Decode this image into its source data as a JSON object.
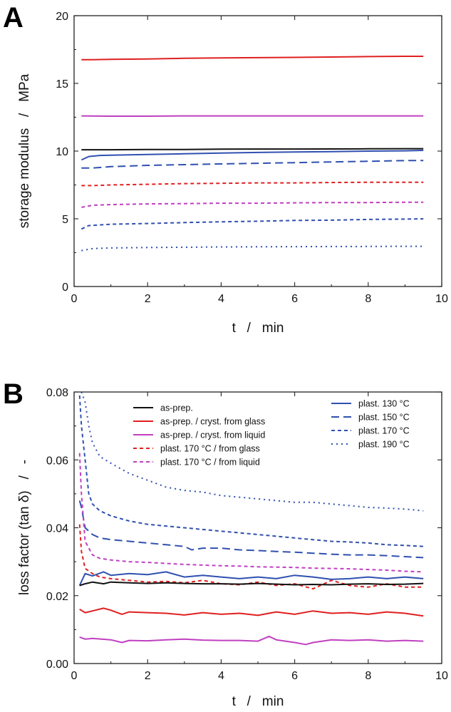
{
  "chart_data": [
    {
      "panel": "A",
      "type": "line",
      "xlabel": "t   /   min",
      "ylabel": "storage modulus   /   MPa",
      "xlim": [
        0,
        10
      ],
      "ylim": [
        0,
        20
      ],
      "xticks": [
        "0",
        "2",
        "4",
        "6",
        "8",
        "10"
      ],
      "yticks": [
        "0",
        "5",
        "10",
        "15",
        "20"
      ],
      "grid": false,
      "legend": "none",
      "series": [
        {
          "color": "#e02020",
          "dash": "solid",
          "x": [
            0.2,
            0.5,
            1,
            2,
            3,
            4,
            5,
            6,
            7,
            8,
            9,
            9.5
          ],
          "y": [
            16.75,
            16.75,
            16.78,
            16.8,
            16.85,
            16.88,
            16.9,
            16.92,
            16.95,
            16.98,
            17.0,
            17.0
          ]
        },
        {
          "color": "#c040c0",
          "dash": "solid",
          "x": [
            0.2,
            1,
            2,
            3,
            4,
            5,
            6,
            7,
            8,
            9,
            9.5
          ],
          "y": [
            12.6,
            12.58,
            12.58,
            12.6,
            12.6,
            12.6,
            12.6,
            12.6,
            12.6,
            12.6,
            12.6
          ]
        },
        {
          "color": "#111111",
          "dash": "solid",
          "x": [
            0.2,
            1,
            2,
            3,
            4,
            5,
            6,
            7,
            8,
            9,
            9.5
          ],
          "y": [
            10.1,
            10.1,
            10.12,
            10.12,
            10.14,
            10.15,
            10.15,
            10.16,
            10.17,
            10.18,
            10.18
          ]
        },
        {
          "color": "#3050b0",
          "dash": "solid",
          "x": [
            0.2,
            0.4,
            0.7,
            1,
            2,
            3,
            4,
            5,
            6,
            7,
            8,
            9,
            9.5
          ],
          "y": [
            9.35,
            9.6,
            9.68,
            9.7,
            9.75,
            9.8,
            9.85,
            9.9,
            9.93,
            9.96,
            10.0,
            10.02,
            10.05
          ]
        },
        {
          "color": "#3050b0",
          "dash": "long",
          "x": [
            0.2,
            0.5,
            1,
            2,
            3,
            4,
            5,
            6,
            7,
            8,
            9,
            9.5
          ],
          "y": [
            8.75,
            8.75,
            8.85,
            8.95,
            9.0,
            9.05,
            9.1,
            9.15,
            9.2,
            9.25,
            9.3,
            9.3
          ]
        },
        {
          "color": "#e02020",
          "dash": "short",
          "x": [
            0.2,
            0.5,
            1,
            2,
            3,
            4,
            5,
            6,
            7,
            8,
            9,
            9.5
          ],
          "y": [
            7.45,
            7.45,
            7.5,
            7.55,
            7.6,
            7.62,
            7.65,
            7.65,
            7.68,
            7.7,
            7.7,
            7.7
          ]
        },
        {
          "color": "#c040c0",
          "dash": "short",
          "x": [
            0.2,
            0.5,
            1,
            2,
            3,
            4,
            5,
            6,
            7,
            8,
            9,
            9.5
          ],
          "y": [
            5.85,
            6.0,
            6.05,
            6.1,
            6.12,
            6.15,
            6.15,
            6.18,
            6.2,
            6.2,
            6.22,
            6.22
          ]
        },
        {
          "color": "#3050b0",
          "dash": "short",
          "x": [
            0.2,
            0.4,
            0.7,
            1,
            2,
            3,
            4,
            5,
            6,
            7,
            8,
            9,
            9.5
          ],
          "y": [
            4.25,
            4.5,
            4.55,
            4.6,
            4.65,
            4.72,
            4.78,
            4.82,
            4.88,
            4.9,
            4.95,
            4.98,
            5.0
          ]
        },
        {
          "color": "#3050b0",
          "dash": "dot",
          "x": [
            0.2,
            0.5,
            1,
            2,
            3,
            4,
            5,
            6,
            7,
            8,
            9,
            9.5
          ],
          "y": [
            2.65,
            2.8,
            2.85,
            2.88,
            2.9,
            2.92,
            2.93,
            2.94,
            2.95,
            2.96,
            2.97,
            2.97
          ]
        }
      ]
    },
    {
      "panel": "B",
      "type": "line",
      "xlabel": "t   /   min",
      "ylabel": "loss factor (tan δ)   /   -",
      "xlim": [
        0,
        10
      ],
      "ylim": [
        0,
        0.08
      ],
      "xticks": [
        "0",
        "2",
        "4",
        "6",
        "8",
        "10"
      ],
      "yticks": [
        "0.00",
        "0.02",
        "0.04",
        "0.06",
        "0.08"
      ],
      "grid": false,
      "legend": "top",
      "legend_left": [
        {
          "label": "as-prep.",
          "color": "#111111",
          "dash": "solid"
        },
        {
          "label": "as-prep. / cryst. from glass",
          "color": "#e02020",
          "dash": "solid"
        },
        {
          "label": "as-prep. / cryst. from liquid",
          "color": "#c040c0",
          "dash": "solid"
        },
        {
          "label": "plast. 170 °C / from glass",
          "color": "#e02020",
          "dash": "short"
        },
        {
          "label": "plast. 170 °C / from liquid",
          "color": "#c040c0",
          "dash": "short"
        }
      ],
      "legend_right": [
        {
          "label": "plast. 130 °C",
          "color": "#3050b0",
          "dash": "solid"
        },
        {
          "label": "plast. 150 °C",
          "color": "#3050b0",
          "dash": "long"
        },
        {
          "label": "plast. 170 °C",
          "color": "#3050b0",
          "dash": "short"
        },
        {
          "label": "plast. 190 °C",
          "color": "#3050b0",
          "dash": "dot"
        }
      ],
      "series": [
        {
          "color": "#3050b0",
          "dash": "dot",
          "x": [
            0.2,
            0.3,
            0.4,
            0.5,
            0.7,
            1.0,
            1.5,
            2.0,
            2.5,
            3.0,
            3.5,
            4.0,
            4.5,
            5.0,
            5.5,
            6.0,
            6.5,
            7.0,
            7.5,
            8.0,
            8.5,
            9.0,
            9.5
          ],
          "y": [
            0.08,
            0.077,
            0.07,
            0.065,
            0.061,
            0.059,
            0.056,
            0.054,
            0.052,
            0.051,
            0.0505,
            0.0495,
            0.049,
            0.0485,
            0.048,
            0.0475,
            0.0475,
            0.047,
            0.0465,
            0.046,
            0.0458,
            0.0455,
            0.045
          ]
        },
        {
          "color": "#3050b0",
          "dash": "short",
          "x": [
            0.15,
            0.2,
            0.3,
            0.4,
            0.5,
            0.7,
            1.0,
            1.5,
            2.0,
            2.5,
            3.0,
            3.5,
            4.0,
            4.5,
            5.0,
            5.5,
            6.0,
            6.5,
            7.0,
            7.5,
            8.0,
            8.5,
            9.0,
            9.5
          ],
          "y": [
            0.079,
            0.07,
            0.06,
            0.05,
            0.047,
            0.045,
            0.0435,
            0.042,
            0.041,
            0.0405,
            0.04,
            0.0395,
            0.039,
            0.0385,
            0.038,
            0.0375,
            0.037,
            0.0365,
            0.036,
            0.0358,
            0.0355,
            0.035,
            0.0348,
            0.0345
          ]
        },
        {
          "color": "#3050b0",
          "dash": "long",
          "x": [
            0.15,
            0.2,
            0.3,
            0.5,
            0.7,
            1.0,
            1.5,
            2.0,
            2.5,
            3.0,
            3.2,
            3.5,
            4.0,
            4.5,
            5.0,
            5.5,
            6.0,
            6.5,
            7.0,
            7.5,
            8.0,
            8.5,
            9.0,
            9.5
          ],
          "y": [
            0.048,
            0.046,
            0.04,
            0.038,
            0.037,
            0.0365,
            0.036,
            0.0355,
            0.035,
            0.0345,
            0.0335,
            0.034,
            0.034,
            0.0335,
            0.0333,
            0.033,
            0.0328,
            0.0325,
            0.0322,
            0.032,
            0.032,
            0.0318,
            0.0315,
            0.0312
          ]
        },
        {
          "color": "#c040c0",
          "dash": "short",
          "x": [
            0.15,
            0.2,
            0.3,
            0.5,
            0.7,
            1.0,
            1.5,
            2.0,
            2.5,
            3.0,
            3.5,
            4.0,
            4.5,
            5.0,
            5.5,
            6.0,
            6.5,
            7.0,
            7.5,
            8.0,
            8.5,
            9.0,
            9.5
          ],
          "y": [
            0.062,
            0.05,
            0.036,
            0.032,
            0.031,
            0.0305,
            0.03,
            0.0298,
            0.0295,
            0.0292,
            0.029,
            0.0288,
            0.0287,
            0.0285,
            0.0284,
            0.0283,
            0.0281,
            0.028,
            0.0279,
            0.0277,
            0.0275,
            0.0272,
            0.027
          ]
        },
        {
          "color": "#e02020",
          "dash": "short",
          "x": [
            0.15,
            0.2,
            0.3,
            0.5,
            0.7,
            1.0,
            1.5,
            2.0,
            2.5,
            3.0,
            3.5,
            4.0,
            4.5,
            5.0,
            5.5,
            6.0,
            6.5,
            7.0,
            7.5,
            8.0,
            8.5,
            9.0,
            9.5
          ],
          "y": [
            0.041,
            0.033,
            0.028,
            0.0265,
            0.0255,
            0.025,
            0.0245,
            0.024,
            0.0242,
            0.0238,
            0.0245,
            0.0235,
            0.0232,
            0.024,
            0.023,
            0.0235,
            0.022,
            0.0245,
            0.023,
            0.0225,
            0.0235,
            0.0225,
            0.0225
          ]
        },
        {
          "color": "#3050b0",
          "dash": "solid",
          "x": [
            0.15,
            0.3,
            0.5,
            0.8,
            1.0,
            1.5,
            2.0,
            2.5,
            3.0,
            3.5,
            4.0,
            4.5,
            5.0,
            5.5,
            6.0,
            6.5,
            7.0,
            7.5,
            8.0,
            8.5,
            9.0,
            9.5
          ],
          "y": [
            0.023,
            0.0265,
            0.0258,
            0.027,
            0.026,
            0.0265,
            0.0262,
            0.027,
            0.0255,
            0.026,
            0.0255,
            0.025,
            0.0255,
            0.025,
            0.026,
            0.0255,
            0.0248,
            0.025,
            0.0255,
            0.025,
            0.0255,
            0.025
          ]
        },
        {
          "color": "#111111",
          "dash": "solid",
          "x": [
            0.15,
            0.3,
            0.5,
            0.8,
            1.0,
            1.5,
            2.0,
            2.5,
            3.0,
            3.5,
            4.0,
            4.5,
            5.0,
            5.5,
            6.0,
            6.5,
            7.0,
            7.5,
            8.0,
            8.5,
            9.0,
            9.5
          ],
          "y": [
            0.023,
            0.0235,
            0.024,
            0.0235,
            0.024,
            0.0238,
            0.0236,
            0.0238,
            0.0236,
            0.0235,
            0.0235,
            0.0234,
            0.0236,
            0.0234,
            0.0232,
            0.0233,
            0.0232,
            0.0234,
            0.0235,
            0.0233,
            0.0234,
            0.0236
          ]
        },
        {
          "color": "#e02020",
          "dash": "solid",
          "x": [
            0.15,
            0.3,
            0.5,
            0.8,
            1.0,
            1.3,
            1.5,
            2.0,
            2.5,
            3.0,
            3.5,
            4.0,
            4.5,
            5.0,
            5.5,
            6.0,
            6.5,
            7.0,
            7.5,
            8.0,
            8.5,
            9.0,
            9.5
          ],
          "y": [
            0.016,
            0.015,
            0.0155,
            0.0163,
            0.0157,
            0.0145,
            0.0152,
            0.015,
            0.0148,
            0.0143,
            0.015,
            0.0145,
            0.0148,
            0.0142,
            0.0152,
            0.0145,
            0.0155,
            0.0148,
            0.015,
            0.0145,
            0.0152,
            0.0148,
            0.014
          ]
        },
        {
          "color": "#c040c0",
          "dash": "solid",
          "x": [
            0.15,
            0.3,
            0.5,
            1.0,
            1.3,
            1.5,
            2.0,
            2.5,
            3.0,
            3.5,
            4.0,
            4.5,
            5.0,
            5.3,
            5.5,
            6.0,
            6.3,
            6.5,
            7.0,
            7.5,
            8.0,
            8.5,
            9.0,
            9.5
          ],
          "y": [
            0.0078,
            0.0072,
            0.0074,
            0.007,
            0.0062,
            0.0068,
            0.0067,
            0.007,
            0.0072,
            0.0069,
            0.0068,
            0.0068,
            0.0066,
            0.008,
            0.007,
            0.0062,
            0.0056,
            0.0062,
            0.007,
            0.0068,
            0.007,
            0.0066,
            0.0068,
            0.0066
          ]
        }
      ]
    }
  ]
}
